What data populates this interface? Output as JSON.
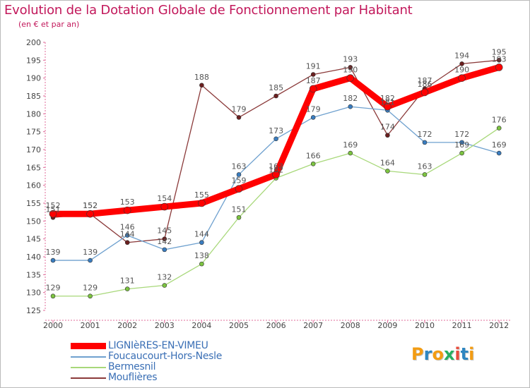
{
  "header": {
    "title": "Evolution de la Dotation Globale de Fonctionnement par Habitant",
    "subtitle": "(en € et par an)"
  },
  "logo": {
    "text": "Proxiti",
    "letters": [
      "P",
      "r",
      "o",
      "x",
      "i",
      "t",
      "i"
    ],
    "colors": [
      "#f39c12",
      "#2e86c1",
      "#f39c12",
      "#27ae60",
      "#e74c3c",
      "#2e86c1",
      "#f39c12"
    ]
  },
  "chart_data": {
    "type": "line",
    "title": "Evolution de la Dotation Globale de Fonctionnement par Habitant",
    "subtitle": "(en € et par an)",
    "xlabel": "",
    "ylabel": "",
    "x": [
      "2000",
      "2001",
      "2002",
      "2003",
      "2004",
      "2005",
      "2006",
      "2007",
      "2008",
      "2009",
      "2010",
      "2011",
      "2012"
    ],
    "ylim": [
      125,
      200
    ],
    "yticks": [
      125,
      130,
      135,
      140,
      145,
      150,
      155,
      160,
      165,
      170,
      175,
      180,
      185,
      190,
      195,
      200
    ],
    "grid": false,
    "legend_position": "bottom-left",
    "series": [
      {
        "name": "LIGNIèRES-EN-VIMEU",
        "color": "#ff0000",
        "marker": "#ff0000",
        "width": 9,
        "values": [
          152,
          152,
          153,
          154,
          155,
          159,
          163,
          187,
          190,
          182,
          186,
          190,
          193
        ]
      },
      {
        "name": "Foucaucourt-Hors-Nesle",
        "color": "#6fa1cf",
        "marker": "#3a7dc0",
        "width": 1.3,
        "values": [
          139,
          139,
          146,
          142,
          144,
          163,
          173,
          179,
          182,
          181,
          172,
          172,
          169
        ]
      },
      {
        "name": "Bermesnil",
        "color": "#a8d87a",
        "marker": "#7cc440",
        "width": 1.3,
        "values": [
          129,
          129,
          131,
          132,
          138,
          151,
          162,
          166,
          169,
          164,
          163,
          169,
          176
        ]
      },
      {
        "name": "Mouflières",
        "color": "#8b3a3a",
        "marker": "#6b1f1f",
        "width": 1.3,
        "values": [
          151,
          152,
          144,
          145,
          188,
          179,
          185,
          191,
          193,
          174,
          187,
          194,
          195
        ]
      }
    ]
  }
}
